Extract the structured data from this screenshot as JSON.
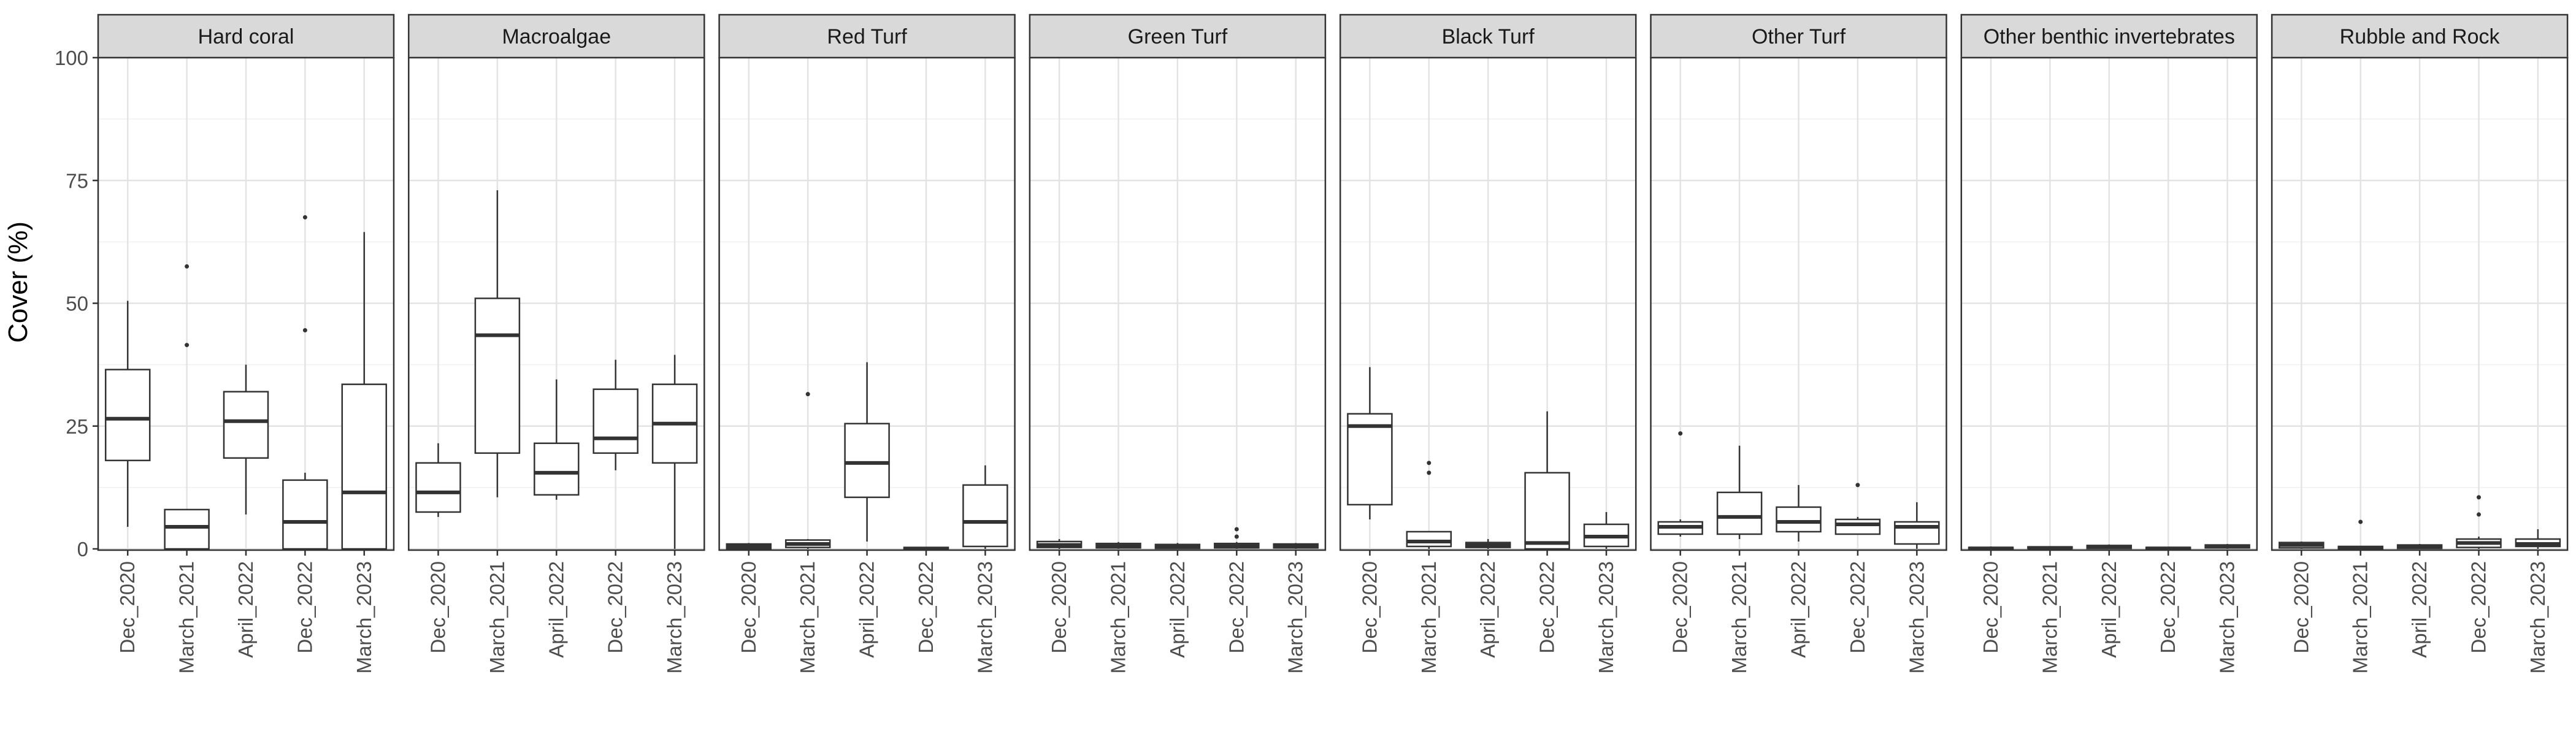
{
  "chart_data": {
    "type": "boxplot",
    "ylabel": "Cover (%)",
    "ylim": [
      0,
      100
    ],
    "y_ticks": [
      0,
      25,
      50,
      75,
      100
    ],
    "categories": [
      "Dec_2020",
      "March_2021",
      "April_2022",
      "Dec_2022",
      "March_2023"
    ],
    "grid": true,
    "facets": [
      {
        "name": "Hard coral",
        "boxes": [
          {
            "category": "Dec_2020",
            "min": 4.5,
            "q1": 18,
            "median": 26.5,
            "q3": 36.5,
            "max": 50.5,
            "outliers": []
          },
          {
            "category": "March_2021",
            "min": 0,
            "q1": 0,
            "median": 4.5,
            "q3": 8,
            "max": 8,
            "outliers": [
              41.5,
              57.5
            ]
          },
          {
            "category": "April_2022",
            "min": 7,
            "q1": 18.5,
            "median": 26,
            "q3": 32,
            "max": 37.5,
            "outliers": []
          },
          {
            "category": "Dec_2022",
            "min": 0,
            "q1": 0,
            "median": 5.5,
            "q3": 14,
            "max": 15.5,
            "outliers": [
              44.5,
              67.5
            ]
          },
          {
            "category": "March_2023",
            "min": 0,
            "q1": 0,
            "median": 11.5,
            "q3": 33.5,
            "max": 64.5,
            "outliers": []
          }
        ]
      },
      {
        "name": "Macroalgae",
        "boxes": [
          {
            "category": "Dec_2020",
            "min": 6.5,
            "q1": 7.5,
            "median": 11.5,
            "q3": 17.5,
            "max": 21.5,
            "outliers": []
          },
          {
            "category": "March_2021",
            "min": 10.5,
            "q1": 19.5,
            "median": 43.5,
            "q3": 51,
            "max": 73,
            "outliers": []
          },
          {
            "category": "April_2022",
            "min": 10,
            "q1": 11,
            "median": 15.5,
            "q3": 21.5,
            "max": 34.5,
            "outliers": []
          },
          {
            "category": "Dec_2022",
            "min": 16,
            "q1": 19.5,
            "median": 22.5,
            "q3": 32.5,
            "max": 38.5,
            "outliers": []
          },
          {
            "category": "March_2023",
            "min": 0,
            "q1": 17.5,
            "median": 25.5,
            "q3": 33.5,
            "max": 39.5,
            "outliers": []
          }
        ]
      },
      {
        "name": "Red Turf",
        "boxes": [
          {
            "category": "Dec_2020",
            "min": 0,
            "q1": 0,
            "median": 0.5,
            "q3": 1,
            "max": 1.2,
            "outliers": []
          },
          {
            "category": "March_2021",
            "min": 0,
            "q1": 0.3,
            "median": 1,
            "q3": 1.8,
            "max": 2,
            "outliers": [
              31.5
            ]
          },
          {
            "category": "April_2022",
            "min": 1.5,
            "q1": 10.5,
            "median": 17.5,
            "q3": 25.5,
            "max": 38,
            "outliers": []
          },
          {
            "category": "Dec_2022",
            "min": 0,
            "q1": 0,
            "median": 0,
            "q3": 0.3,
            "max": 0.4,
            "outliers": []
          },
          {
            "category": "March_2023",
            "min": 0,
            "q1": 0.5,
            "median": 5.5,
            "q3": 13,
            "max": 17,
            "outliers": []
          }
        ]
      },
      {
        "name": "Green Turf",
        "boxes": [
          {
            "category": "Dec_2020",
            "min": 0,
            "q1": 0.3,
            "median": 0.8,
            "q3": 1.5,
            "max": 2,
            "outliers": []
          },
          {
            "category": "March_2021",
            "min": 0,
            "q1": 0.2,
            "median": 0.6,
            "q3": 1.1,
            "max": 1.4,
            "outliers": []
          },
          {
            "category": "April_2022",
            "min": 0,
            "q1": 0.1,
            "median": 0.5,
            "q3": 0.9,
            "max": 1.2,
            "outliers": []
          },
          {
            "category": "Dec_2022",
            "min": 0,
            "q1": 0.2,
            "median": 0.6,
            "q3": 1.1,
            "max": 1.4,
            "outliers": [
              2.5,
              4
            ]
          },
          {
            "category": "March_2023",
            "min": 0,
            "q1": 0.2,
            "median": 0.6,
            "q3": 1,
            "max": 1.2,
            "outliers": []
          }
        ]
      },
      {
        "name": "Black Turf",
        "boxes": [
          {
            "category": "Dec_2020",
            "min": 6,
            "q1": 9,
            "median": 25,
            "q3": 27.5,
            "max": 37,
            "outliers": []
          },
          {
            "category": "March_2021",
            "min": 0,
            "q1": 0.5,
            "median": 1.5,
            "q3": 3.5,
            "max": 3.5,
            "outliers": [
              15.5,
              17.5
            ]
          },
          {
            "category": "April_2022",
            "min": 0,
            "q1": 0.3,
            "median": 0.8,
            "q3": 1.3,
            "max": 2,
            "outliers": []
          },
          {
            "category": "Dec_2022",
            "min": 0,
            "q1": 0,
            "median": 1.2,
            "q3": 15.5,
            "max": 28,
            "outliers": []
          },
          {
            "category": "March_2023",
            "min": 0,
            "q1": 0.5,
            "median": 2.5,
            "q3": 5,
            "max": 7.5,
            "outliers": []
          }
        ]
      },
      {
        "name": "Other Turf",
        "boxes": [
          {
            "category": "Dec_2020",
            "min": 2.5,
            "q1": 3,
            "median": 4.5,
            "q3": 5.5,
            "max": 6,
            "outliers": [
              23.5
            ]
          },
          {
            "category": "March_2021",
            "min": 2,
            "q1": 3,
            "median": 6.5,
            "q3": 11.5,
            "max": 21,
            "outliers": []
          },
          {
            "category": "April_2022",
            "min": 1.5,
            "q1": 3.5,
            "median": 5.5,
            "q3": 8.5,
            "max": 13,
            "outliers": []
          },
          {
            "category": "Dec_2022",
            "min": 3,
            "q1": 3,
            "median": 5,
            "q3": 6,
            "max": 6.5,
            "outliers": [
              13
            ]
          },
          {
            "category": "March_2023",
            "min": 0,
            "q1": 1,
            "median": 4.5,
            "q3": 5.5,
            "max": 9.5,
            "outliers": []
          }
        ]
      },
      {
        "name": "Other benthic invertebrates",
        "boxes": [
          {
            "category": "Dec_2020",
            "min": 0,
            "q1": 0,
            "median": 0.1,
            "q3": 0.3,
            "max": 0.5,
            "outliers": []
          },
          {
            "category": "March_2021",
            "min": 0,
            "q1": 0.1,
            "median": 0.2,
            "q3": 0.4,
            "max": 0.5,
            "outliers": []
          },
          {
            "category": "April_2022",
            "min": 0,
            "q1": 0.1,
            "median": 0.4,
            "q3": 0.7,
            "max": 0.9,
            "outliers": []
          },
          {
            "category": "Dec_2022",
            "min": 0,
            "q1": 0,
            "median": 0.1,
            "q3": 0.3,
            "max": 0.4,
            "outliers": []
          },
          {
            "category": "March_2023",
            "min": 0,
            "q1": 0.2,
            "median": 0.5,
            "q3": 0.8,
            "max": 1,
            "outliers": []
          }
        ]
      },
      {
        "name": "Rubble and Rock",
        "boxes": [
          {
            "category": "Dec_2020",
            "min": 0,
            "q1": 0.2,
            "median": 0.8,
            "q3": 1.3,
            "max": 1.5,
            "outliers": []
          },
          {
            "category": "March_2021",
            "min": 0,
            "q1": 0,
            "median": 0.2,
            "q3": 0.5,
            "max": 0.6,
            "outliers": [
              5.5
            ]
          },
          {
            "category": "April_2022",
            "min": 0,
            "q1": 0.1,
            "median": 0.4,
            "q3": 0.8,
            "max": 1,
            "outliers": []
          },
          {
            "category": "Dec_2022",
            "min": 0,
            "q1": 0.3,
            "median": 1.2,
            "q3": 2,
            "max": 2.5,
            "outliers": [
              7,
              10.5
            ]
          },
          {
            "category": "March_2023",
            "min": 0,
            "q1": 0.5,
            "median": 1,
            "q3": 2,
            "max": 4,
            "outliers": []
          }
        ]
      }
    ]
  }
}
